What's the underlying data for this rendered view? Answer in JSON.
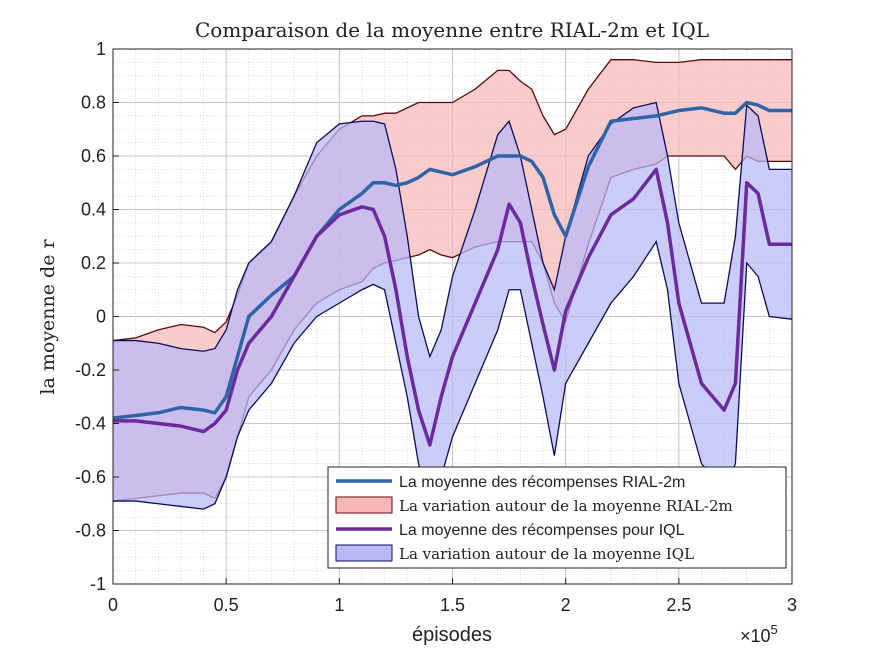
{
  "chart_data": {
    "type": "line",
    "title": "Comparaison de la moyenne entre RIAL-2m et IQL",
    "xlabel": "épisodes",
    "ylabel": "la moyenne de r",
    "x_exponent": "×10",
    "x_exponent_power": "5",
    "xlim": [
      0,
      3
    ],
    "ylim": [
      -1,
      1
    ],
    "xticks": [
      0,
      0.5,
      1,
      1.5,
      2,
      2.5,
      3
    ],
    "xtick_labels": [
      "0",
      "0.5",
      "1",
      "1.5",
      "2",
      "2.5",
      "3"
    ],
    "yticks": [
      -1,
      -0.8,
      -0.6,
      -0.4,
      -0.2,
      0,
      0.2,
      0.4,
      0.6,
      0.8,
      1
    ],
    "ytick_labels": [
      "-1",
      "-0.8",
      "-0.6",
      "-0.4",
      "-0.2",
      "0",
      "0.2",
      "0.4",
      "0.6",
      "0.8",
      "1"
    ],
    "grid": true,
    "minor_grid": true,
    "legend_position": "bottom-right",
    "x": [
      0,
      0.1,
      0.2,
      0.3,
      0.4,
      0.45,
      0.5,
      0.55,
      0.6,
      0.7,
      0.8,
      0.9,
      1.0,
      1.1,
      1.15,
      1.2,
      1.25,
      1.3,
      1.35,
      1.4,
      1.45,
      1.5,
      1.6,
      1.7,
      1.75,
      1.8,
      1.85,
      1.9,
      1.95,
      2.0,
      2.1,
      2.2,
      2.3,
      2.4,
      2.45,
      2.5,
      2.6,
      2.7,
      2.75,
      2.8,
      2.85,
      2.9,
      3.0
    ],
    "series": [
      {
        "name": "La moyenne des récompenses RIAL-2m",
        "kind": "line",
        "color": "#2f64a8",
        "values": [
          -0.38,
          -0.37,
          -0.36,
          -0.34,
          -0.35,
          -0.36,
          -0.3,
          -0.15,
          0.0,
          0.08,
          0.15,
          0.3,
          0.4,
          0.46,
          0.5,
          0.5,
          0.49,
          0.5,
          0.52,
          0.55,
          0.54,
          0.53,
          0.56,
          0.6,
          0.6,
          0.6,
          0.58,
          0.52,
          0.38,
          0.3,
          0.56,
          0.73,
          0.74,
          0.75,
          0.76,
          0.77,
          0.78,
          0.76,
          0.76,
          0.8,
          0.79,
          0.77,
          0.77
        ]
      },
      {
        "name": "La moyenne des récompenses pour IQL",
        "kind": "line",
        "color": "#6a2c9c",
        "values": [
          -0.39,
          -0.39,
          -0.4,
          -0.41,
          -0.43,
          -0.4,
          -0.35,
          -0.2,
          -0.1,
          0.0,
          0.15,
          0.3,
          0.38,
          0.41,
          0.4,
          0.3,
          0.1,
          -0.15,
          -0.35,
          -0.48,
          -0.3,
          -0.15,
          0.05,
          0.25,
          0.42,
          0.35,
          0.15,
          -0.03,
          -0.2,
          0.02,
          0.22,
          0.38,
          0.44,
          0.55,
          0.35,
          0.05,
          -0.25,
          -0.35,
          -0.25,
          0.5,
          0.46,
          0.27,
          0.27
        ]
      },
      {
        "name": "La variation autour de la moyenne RIAL-2m",
        "kind": "band",
        "fill": "#f8b7b7",
        "edge": "#5a0a0a",
        "upper": [
          -0.09,
          -0.08,
          -0.05,
          -0.03,
          -0.04,
          -0.06,
          -0.02,
          0.08,
          0.2,
          0.28,
          0.45,
          0.6,
          0.7,
          0.75,
          0.75,
          0.76,
          0.76,
          0.78,
          0.8,
          0.8,
          0.8,
          0.8,
          0.85,
          0.92,
          0.92,
          0.88,
          0.85,
          0.75,
          0.68,
          0.7,
          0.85,
          0.96,
          0.96,
          0.95,
          0.95,
          0.95,
          0.96,
          0.96,
          0.96,
          0.96,
          0.96,
          0.96,
          0.96
        ],
        "lower": [
          -0.69,
          -0.68,
          -0.67,
          -0.66,
          -0.66,
          -0.68,
          -0.6,
          -0.45,
          -0.3,
          -0.2,
          -0.05,
          0.05,
          0.1,
          0.13,
          0.18,
          0.2,
          0.21,
          0.22,
          0.23,
          0.25,
          0.23,
          0.22,
          0.26,
          0.28,
          0.28,
          0.28,
          0.28,
          0.2,
          0.05,
          -0.02,
          0.27,
          0.52,
          0.55,
          0.57,
          0.6,
          0.6,
          0.6,
          0.6,
          0.55,
          0.6,
          0.58,
          0.58,
          0.58
        ]
      },
      {
        "name": "La variation autour de la moyenne IQL",
        "kind": "band",
        "fill": "#b9b9f8",
        "edge": "#0c0c5a",
        "upper": [
          -0.09,
          -0.09,
          -0.1,
          -0.12,
          -0.13,
          -0.12,
          -0.05,
          0.1,
          0.2,
          0.28,
          0.45,
          0.65,
          0.72,
          0.73,
          0.73,
          0.72,
          0.55,
          0.3,
          0.0,
          -0.15,
          -0.05,
          0.15,
          0.4,
          0.68,
          0.73,
          0.6,
          0.4,
          0.2,
          0.1,
          0.3,
          0.6,
          0.72,
          0.78,
          0.8,
          0.6,
          0.35,
          0.05,
          0.05,
          0.3,
          0.79,
          0.75,
          0.55,
          0.55
        ],
        "lower": [
          -0.69,
          -0.69,
          -0.7,
          -0.71,
          -0.72,
          -0.7,
          -0.6,
          -0.45,
          -0.35,
          -0.25,
          -0.1,
          0.0,
          0.05,
          0.1,
          0.12,
          0.1,
          -0.1,
          -0.3,
          -0.55,
          -0.75,
          -0.6,
          -0.45,
          -0.25,
          -0.05,
          0.1,
          0.1,
          -0.1,
          -0.3,
          -0.52,
          -0.25,
          -0.1,
          0.05,
          0.15,
          0.28,
          0.1,
          -0.25,
          -0.55,
          -0.65,
          -0.55,
          0.2,
          0.15,
          0.0,
          -0.01
        ]
      }
    ],
    "legend": [
      {
        "label": "La moyenne des récompenses RIAL-2m",
        "style": "line",
        "color": "#2f64a8",
        "font": "sans"
      },
      {
        "label": "La variation autour de la moyenne RIAL-2m",
        "style": "patch",
        "color": "#f8b7b7",
        "edge": "#5a0a0a",
        "font": "serif"
      },
      {
        "label": "La moyenne des récompenses pour IQL",
        "style": "line",
        "color": "#6a2c9c",
        "font": "sans"
      },
      {
        "label": "La variation autour de la moyenne IQL",
        "style": "patch",
        "color": "#b9b9f8",
        "edge": "#0c0c5a",
        "font": "serif"
      }
    ]
  }
}
